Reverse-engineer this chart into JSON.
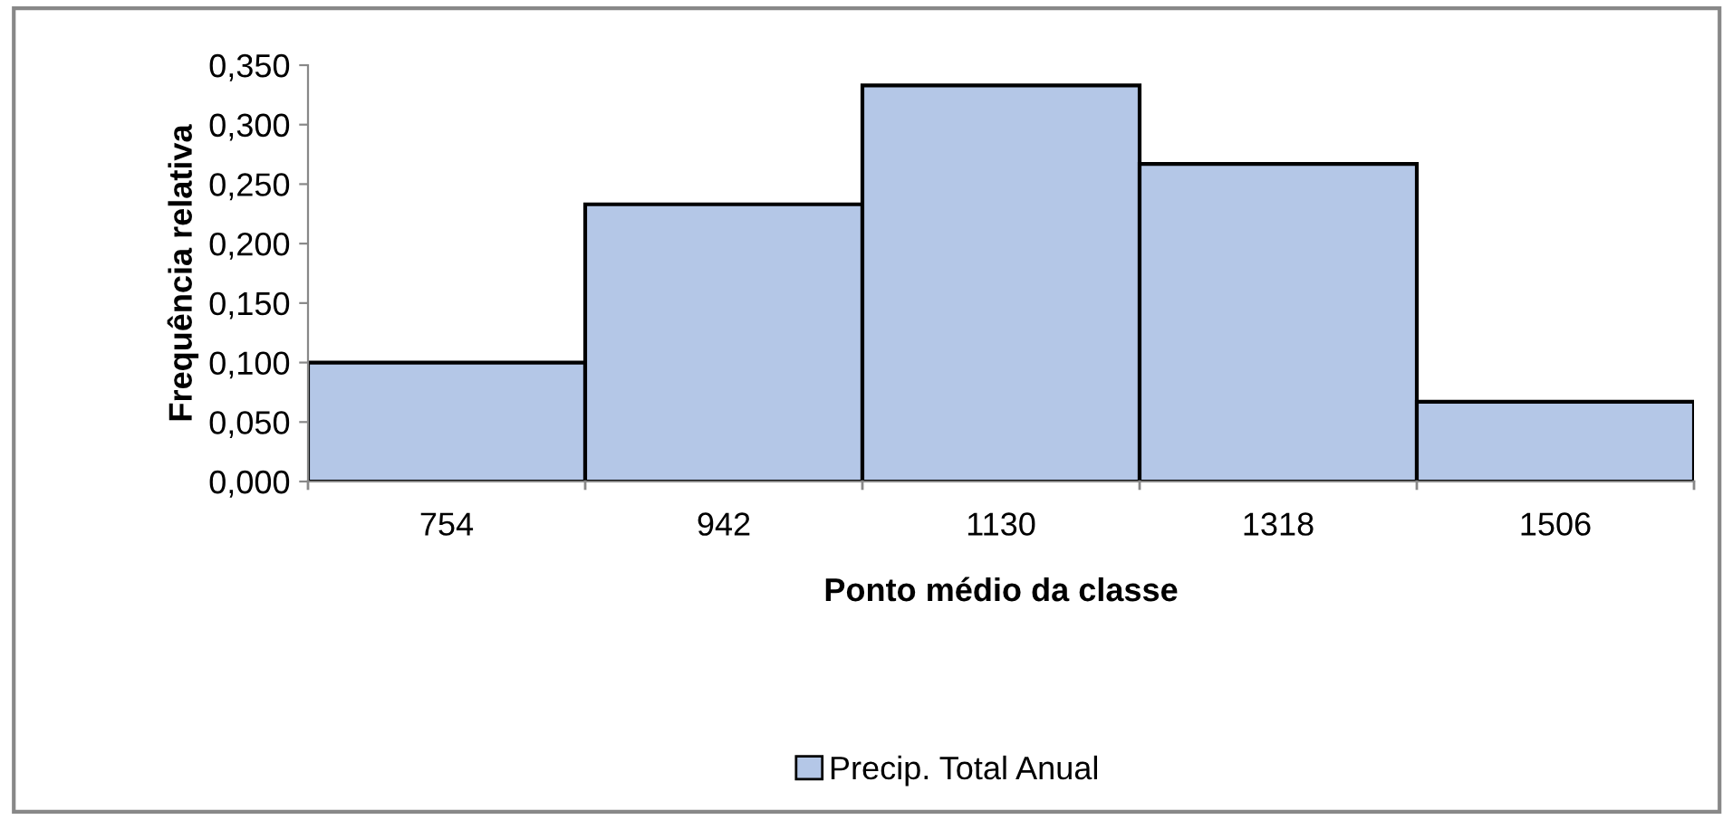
{
  "chart_data": {
    "type": "bar",
    "xlabel": "Ponto médio da classe",
    "ylabel": "Frequência relativa",
    "categories": [
      "754",
      "942",
      "1130",
      "1318",
      "1506"
    ],
    "series": [
      {
        "name": "Precip. Total Anual",
        "color": "#b4c7e7",
        "values": [
          0.1,
          0.233,
          0.333,
          0.267,
          0.067
        ]
      }
    ],
    "ylim": [
      0,
      0.35
    ],
    "yticks": [
      {
        "value": 0,
        "label": "0,000"
      },
      {
        "value": 0.05,
        "label": "0,050"
      },
      {
        "value": 0.1,
        "label": "0,100"
      },
      {
        "value": 0.15,
        "label": "0,150"
      },
      {
        "value": 0.2,
        "label": "0,200"
      },
      {
        "value": 0.25,
        "label": "0,250"
      },
      {
        "value": 0.3,
        "label": "0,300"
      },
      {
        "value": 0.35,
        "label": "0,350"
      }
    ],
    "grid": false,
    "legend": "bottom"
  }
}
